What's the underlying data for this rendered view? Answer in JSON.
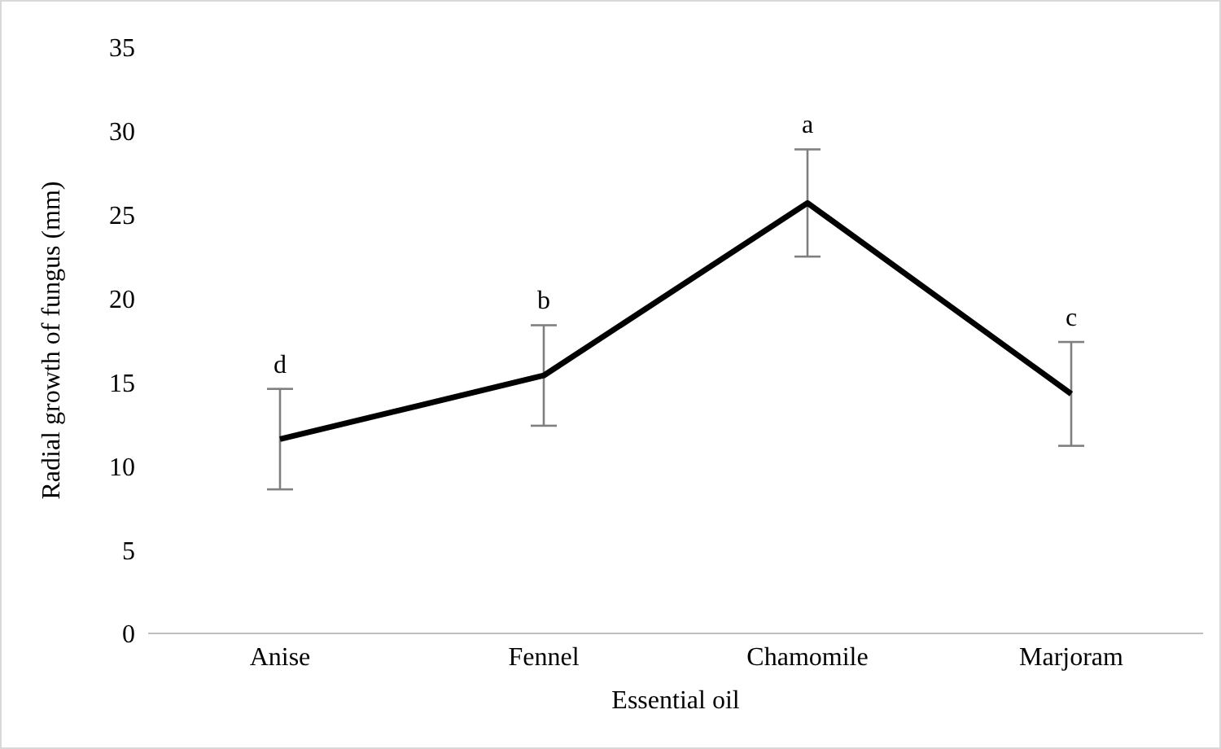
{
  "chart_data": {
    "type": "line",
    "xlabel": "Essential oil",
    "ylabel": "Radial growth of fungus (mm)",
    "categories": [
      "Anise",
      "Fennel",
      "Chamomile",
      "Marjoram"
    ],
    "series": [
      {
        "color": "#000000",
        "values": [
          11.6,
          15.4,
          25.7,
          14.3
        ],
        "errors": [
          3,
          3,
          3.2,
          3.1
        ]
      }
    ],
    "ylim": [
      0,
      35
    ],
    "yticks": [
      0,
      5,
      10,
      15,
      20,
      25,
      30,
      35
    ],
    "grid": false,
    "legend": false,
    "marker": "none",
    "line_style": "solid",
    "annotations": [
      "d",
      "b",
      "a",
      "c"
    ]
  }
}
